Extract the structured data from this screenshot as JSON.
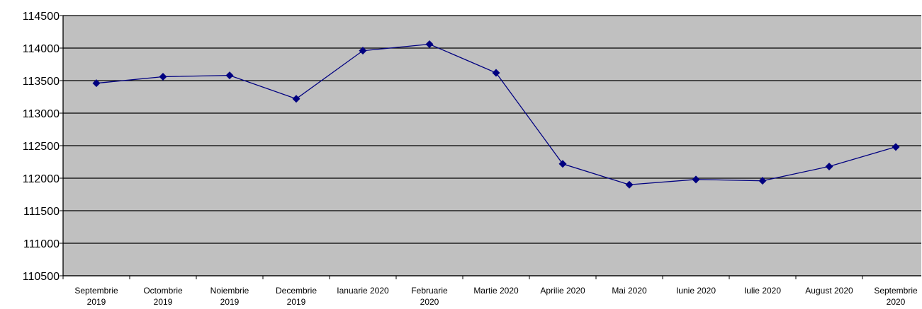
{
  "chart_data": {
    "type": "line",
    "title": "",
    "xlabel": "",
    "ylabel": "",
    "categories": [
      [
        "Septembrie",
        "2019"
      ],
      [
        "Octombrie",
        "2019"
      ],
      [
        "Noiembrie",
        "2019"
      ],
      [
        "Decembrie",
        "2019"
      ],
      [
        "Ianuarie 2020"
      ],
      [
        "Februarie",
        "2020"
      ],
      [
        "Martie 2020"
      ],
      [
        "Aprilie 2020"
      ],
      [
        "Mai 2020"
      ],
      [
        "Iunie 2020"
      ],
      [
        "Iulie 2020"
      ],
      [
        "August 2020"
      ],
      [
        "Septembrie",
        "2020"
      ]
    ],
    "series": [
      {
        "values": [
          113460,
          113560,
          113580,
          113220,
          113960,
          114060,
          113620,
          112220,
          111900,
          111980,
          111960,
          112180,
          112480
        ]
      }
    ],
    "ylim": [
      110500,
      114500
    ],
    "yticks": [
      "110500",
      "111000",
      "111500",
      "112000",
      "112500",
      "113000",
      "113500",
      "114000",
      "114500"
    ],
    "grid": true,
    "legend": "none",
    "colors": {
      "plot_background": "#c0c0c0",
      "line": "#000080",
      "marker": "#000080",
      "gridline": "#000000",
      "axis": "#000000"
    }
  }
}
